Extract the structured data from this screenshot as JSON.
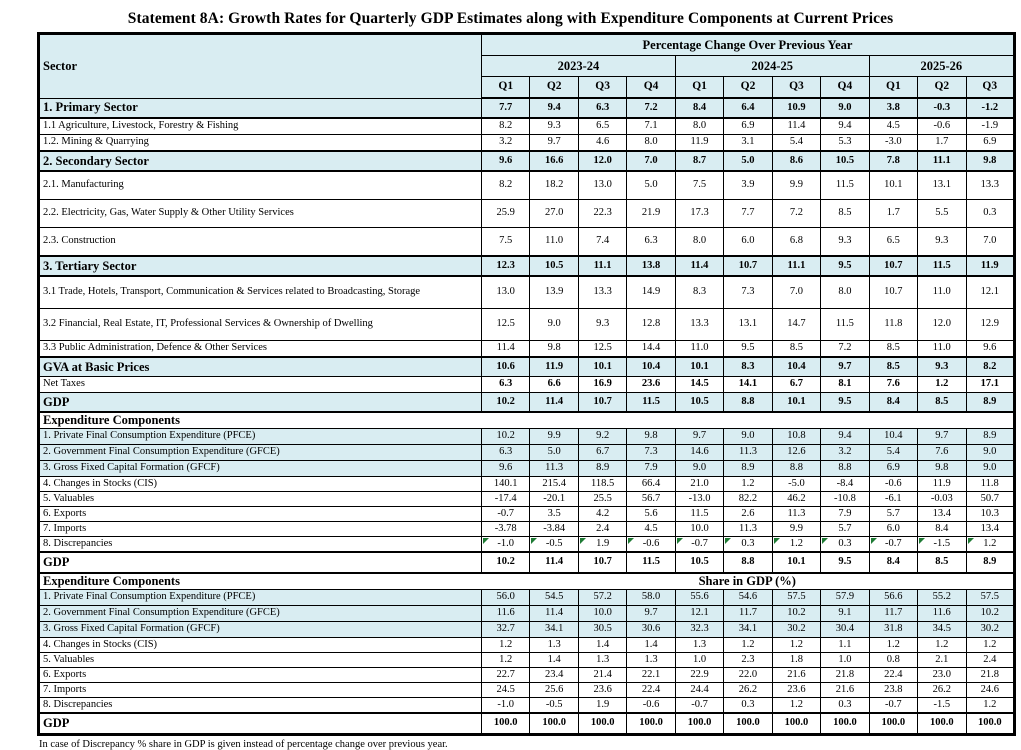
{
  "title": "Statement 8A: Growth Rates for Quarterly GDP Estimates along with Expenditure Components at Current Prices",
  "colors": {
    "highlight": "#d9edf2",
    "marker": "#1e7b34"
  },
  "columns": {
    "sector": "Sector",
    "span": "Percentage Change Over Previous Year",
    "groups": [
      {
        "year": "2023-24",
        "quarters": [
          "Q1",
          "Q2",
          "Q3",
          "Q4"
        ]
      },
      {
        "year": "2024-25",
        "quarters": [
          "Q1",
          "Q2",
          "Q3",
          "Q4"
        ]
      },
      {
        "year": "2025-26",
        "quarters": [
          "Q1",
          "Q2",
          "Q3"
        ]
      }
    ]
  },
  "growth": {
    "rows": [
      {
        "label": "1. Primary Sector",
        "values": [
          "7.7",
          "9.4",
          "6.3",
          "7.2",
          "8.4",
          "6.4",
          "10.9",
          "9.0",
          "3.8",
          "-0.3",
          "-1.2"
        ],
        "bold": true,
        "shaded": true,
        "h": "hs",
        "tb": true
      },
      {
        "label": "1.1 Agriculture, Livestock, Forestry & Fishing",
        "values": [
          "8.2",
          "9.3",
          "6.5",
          "7.1",
          "8.0",
          "6.9",
          "11.4",
          "9.4",
          "4.5",
          "-0.6",
          "-1.9"
        ],
        "h": "hi"
      },
      {
        "label": "1.2. Mining & Quarrying",
        "values": [
          "3.2",
          "9.7",
          "4.6",
          "8.0",
          "11.9",
          "3.1",
          "5.4",
          "5.3",
          "-3.0",
          "1.7",
          "6.9"
        ],
        "h": "hi",
        "tb": true
      },
      {
        "label": "2. Secondary Sector",
        "values": [
          "9.6",
          "16.6",
          "12.0",
          "7.0",
          "8.7",
          "5.0",
          "8.6",
          "10.5",
          "7.8",
          "11.1",
          "9.8"
        ],
        "bold": true,
        "shaded": true,
        "h": "hs",
        "tb": true
      },
      {
        "label": "2.1. Manufacturing",
        "values": [
          "8.2",
          "18.2",
          "13.0",
          "5.0",
          "7.5",
          "3.9",
          "9.9",
          "11.5",
          "10.1",
          "13.1",
          "13.3"
        ],
        "h": "ht"
      },
      {
        "label": "2.2. Electricity, Gas, Water Supply & Other Utility Services",
        "values": [
          "25.9",
          "27.0",
          "22.3",
          "21.9",
          "17.3",
          "7.7",
          "7.2",
          "8.5",
          "1.7",
          "5.5",
          "0.3"
        ],
        "h": "ht"
      },
      {
        "label": "2.3. Construction",
        "values": [
          "7.5",
          "11.0",
          "7.4",
          "6.3",
          "8.0",
          "6.0",
          "6.8",
          "9.3",
          "6.5",
          "9.3",
          "7.0"
        ],
        "h": "ht",
        "tb": true
      },
      {
        "label": "3. Tertiary Sector",
        "values": [
          "12.3",
          "10.5",
          "11.1",
          "13.8",
          "11.4",
          "10.7",
          "11.1",
          "9.5",
          "10.7",
          "11.5",
          "11.9"
        ],
        "bold": true,
        "shaded": true,
        "h": "hs",
        "tb": true
      },
      {
        "label": "3.1 Trade, Hotels, Transport, Communication & Services related to Broadcasting, Storage",
        "values": [
          "13.0",
          "13.9",
          "13.3",
          "14.9",
          "8.3",
          "7.3",
          "7.0",
          "8.0",
          "10.7",
          "11.0",
          "12.1"
        ],
        "h": "hw"
      },
      {
        "label": "3.2 Financial, Real Estate, IT, Professional Services & Ownership of Dwelling",
        "values": [
          "12.5",
          "9.0",
          "9.3",
          "12.8",
          "13.3",
          "13.1",
          "14.7",
          "11.5",
          "11.8",
          "12.0",
          "12.9"
        ],
        "h": "hw"
      },
      {
        "label": "3.3 Public Administration, Defence & Other Services",
        "values": [
          "11.4",
          "9.8",
          "12.5",
          "14.4",
          "11.0",
          "9.5",
          "8.5",
          "7.2",
          "8.5",
          "11.0",
          "9.6"
        ],
        "h": "hi",
        "tb": true
      },
      {
        "label": "GVA at Basic Prices",
        "values": [
          "10.6",
          "11.9",
          "10.1",
          "10.4",
          "10.1",
          "8.3",
          "10.4",
          "9.7",
          "8.5",
          "9.3",
          "8.2"
        ],
        "bold": true,
        "shaded": true,
        "h": "hs"
      },
      {
        "label": "Net Taxes",
        "values": [
          "6.3",
          "6.6",
          "16.9",
          "23.6",
          "14.5",
          "14.1",
          "6.7",
          "8.1",
          "7.6",
          "1.2",
          "17.1"
        ],
        "boldValues": true,
        "h": "hi"
      },
      {
        "label": "GDP",
        "values": [
          "10.2",
          "11.4",
          "10.7",
          "11.5",
          "10.5",
          "8.8",
          "10.1",
          "9.5",
          "8.4",
          "8.5",
          "8.9"
        ],
        "bold": true,
        "shaded": true,
        "h": "hs",
        "tb": true
      }
    ]
  },
  "expenditure_pct": {
    "title": "Expenditure Components",
    "rows": [
      {
        "label": "1. Private Final Consumption Expenditure (PFCE)",
        "values": [
          "10.2",
          "9.9",
          "9.2",
          "9.8",
          "9.7",
          "9.0",
          "10.8",
          "9.4",
          "10.4",
          "9.7",
          "8.9"
        ],
        "shaded": true,
        "h": "hi"
      },
      {
        "label": "2. Government Final Consumption Expenditure (GFCE)",
        "values": [
          "6.3",
          "5.0",
          "6.7",
          "7.3",
          "14.6",
          "11.3",
          "12.6",
          "3.2",
          "5.4",
          "7.6",
          "9.0"
        ],
        "shaded": true,
        "h": "hi"
      },
      {
        "label": "3. Gross Fixed Capital Formation (GFCF)",
        "values": [
          "9.6",
          "11.3",
          "8.9",
          "7.9",
          "9.0",
          "8.9",
          "8.8",
          "8.8",
          "6.9",
          "9.8",
          "9.0"
        ],
        "shaded": true,
        "h": "hi"
      },
      {
        "label": "4. Changes in Stocks (CIS)",
        "values": [
          "140.1",
          "215.4",
          "118.5",
          "66.4",
          "21.0",
          "1.2",
          "-5.0",
          "-8.4",
          "-0.6",
          "11.9",
          "11.8"
        ],
        "h": "hx"
      },
      {
        "label": "5. Valuables",
        "values": [
          "-17.4",
          "-20.1",
          "25.5",
          "56.7",
          "-13.0",
          "82.2",
          "46.2",
          "-10.8",
          "-6.1",
          "-0.03",
          "50.7"
        ],
        "h": "hx"
      },
      {
        "label": "6. Exports",
        "values": [
          "-0.7",
          "3.5",
          "4.2",
          "5.6",
          "11.5",
          "2.6",
          "11.3",
          "7.9",
          "5.7",
          "13.4",
          "10.3"
        ],
        "h": "hx"
      },
      {
        "label": "7. Imports",
        "values": [
          "-3.78",
          "-3.84",
          "2.4",
          "4.5",
          "10.0",
          "11.3",
          "9.9",
          "5.7",
          "6.0",
          "8.4",
          "13.4"
        ],
        "h": "hx"
      },
      {
        "label": "8. Discrepancies",
        "values": [
          "-1.0",
          "-0.5",
          "1.9",
          "-0.6",
          "-0.7",
          "0.3",
          "1.2",
          "0.3",
          "-0.7",
          "-1.5",
          "1.2"
        ],
        "h": "hx",
        "tb": true,
        "markers": true
      },
      {
        "label": "GDP",
        "values": [
          "10.2",
          "11.4",
          "10.7",
          "11.5",
          "10.5",
          "8.8",
          "10.1",
          "9.5",
          "8.4",
          "8.5",
          "8.9"
        ],
        "bold": true,
        "h": "hg",
        "tb": true
      }
    ]
  },
  "expenditure_share": {
    "title": "Expenditure Components",
    "span": "Share in GDP (%)",
    "rows": [
      {
        "label": "1. Private Final Consumption Expenditure (PFCE)",
        "values": [
          "56.0",
          "54.5",
          "57.2",
          "58.0",
          "55.6",
          "54.6",
          "57.5",
          "57.9",
          "56.6",
          "55.2",
          "57.5"
        ],
        "shaded": true,
        "h": "hi"
      },
      {
        "label": "2. Government Final Consumption Expenditure (GFCE)",
        "values": [
          "11.6",
          "11.4",
          "10.0",
          "9.7",
          "12.1",
          "11.7",
          "10.2",
          "9.1",
          "11.7",
          "11.6",
          "10.2"
        ],
        "shaded": true,
        "h": "hi"
      },
      {
        "label": "3. Gross Fixed Capital Formation (GFCF)",
        "values": [
          "32.7",
          "34.1",
          "30.5",
          "30.6",
          "32.3",
          "34.1",
          "30.2",
          "30.4",
          "31.8",
          "34.5",
          "30.2"
        ],
        "shaded": true,
        "h": "hi"
      },
      {
        "label": "4. Changes in Stocks (CIS)",
        "values": [
          "1.2",
          "1.3",
          "1.4",
          "1.4",
          "1.3",
          "1.2",
          "1.2",
          "1.1",
          "1.2",
          "1.2",
          "1.2"
        ],
        "h": "hx"
      },
      {
        "label": "5. Valuables",
        "values": [
          "1.2",
          "1.4",
          "1.3",
          "1.3",
          "1.0",
          "2.3",
          "1.8",
          "1.0",
          "0.8",
          "2.1",
          "2.4"
        ],
        "h": "hx"
      },
      {
        "label": "6. Exports",
        "values": [
          "22.7",
          "23.4",
          "21.4",
          "22.1",
          "22.9",
          "22.0",
          "21.6",
          "21.8",
          "22.4",
          "23.0",
          "21.8"
        ],
        "h": "hx"
      },
      {
        "label": "7. Imports",
        "values": [
          "24.5",
          "25.6",
          "23.6",
          "22.4",
          "24.4",
          "26.2",
          "23.6",
          "21.6",
          "23.8",
          "26.2",
          "24.6"
        ],
        "h": "hx"
      },
      {
        "label": "8. Discrepancies",
        "values": [
          "-1.0",
          "-0.5",
          "1.9",
          "-0.6",
          "-0.7",
          "0.3",
          "1.2",
          "0.3",
          "-0.7",
          "-1.5",
          "1.2"
        ],
        "h": "hx",
        "tb": true
      },
      {
        "label": "GDP",
        "values": [
          "100.0",
          "100.0",
          "100.0",
          "100.0",
          "100.0",
          "100.0",
          "100.0",
          "100.0",
          "100.0",
          "100.0",
          "100.0"
        ],
        "bold": true,
        "h": "hg"
      }
    ]
  },
  "footnote": "In case of Discrepancy % share in GDP is given instead of percentage change over previous year."
}
